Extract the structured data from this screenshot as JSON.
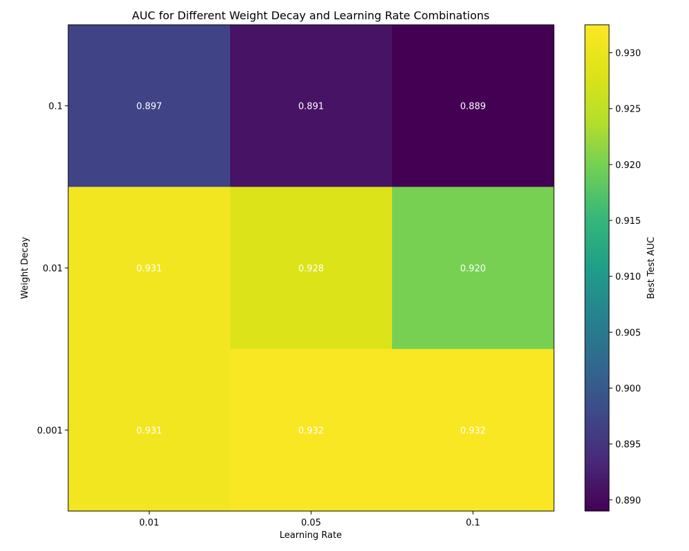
{
  "chart_data": {
    "type": "heatmap",
    "title": "AUC for Different Weight Decay and Learning Rate Combinations",
    "xlabel": "Learning Rate",
    "ylabel": "Weight Decay",
    "x_categories": [
      "0.01",
      "0.05",
      "0.1"
    ],
    "y_categories": [
      "0.1",
      "0.01",
      "0.001"
    ],
    "values": [
      [
        0.897,
        0.891,
        0.889
      ],
      [
        0.931,
        0.928,
        0.92
      ],
      [
        0.931,
        0.932,
        0.932
      ]
    ],
    "cell_labels": [
      [
        "0.897",
        "0.891",
        "0.889"
      ],
      [
        "0.931",
        "0.928",
        "0.920"
      ],
      [
        "0.931",
        "0.932",
        "0.932"
      ]
    ],
    "colormap": "viridis",
    "colorbar": {
      "label": "Best Test AUC",
      "range": [
        0.889,
        0.9325
      ],
      "ticks": [
        "0.890",
        "0.895",
        "0.900",
        "0.905",
        "0.910",
        "0.915",
        "0.920",
        "0.925",
        "0.930"
      ]
    }
  }
}
